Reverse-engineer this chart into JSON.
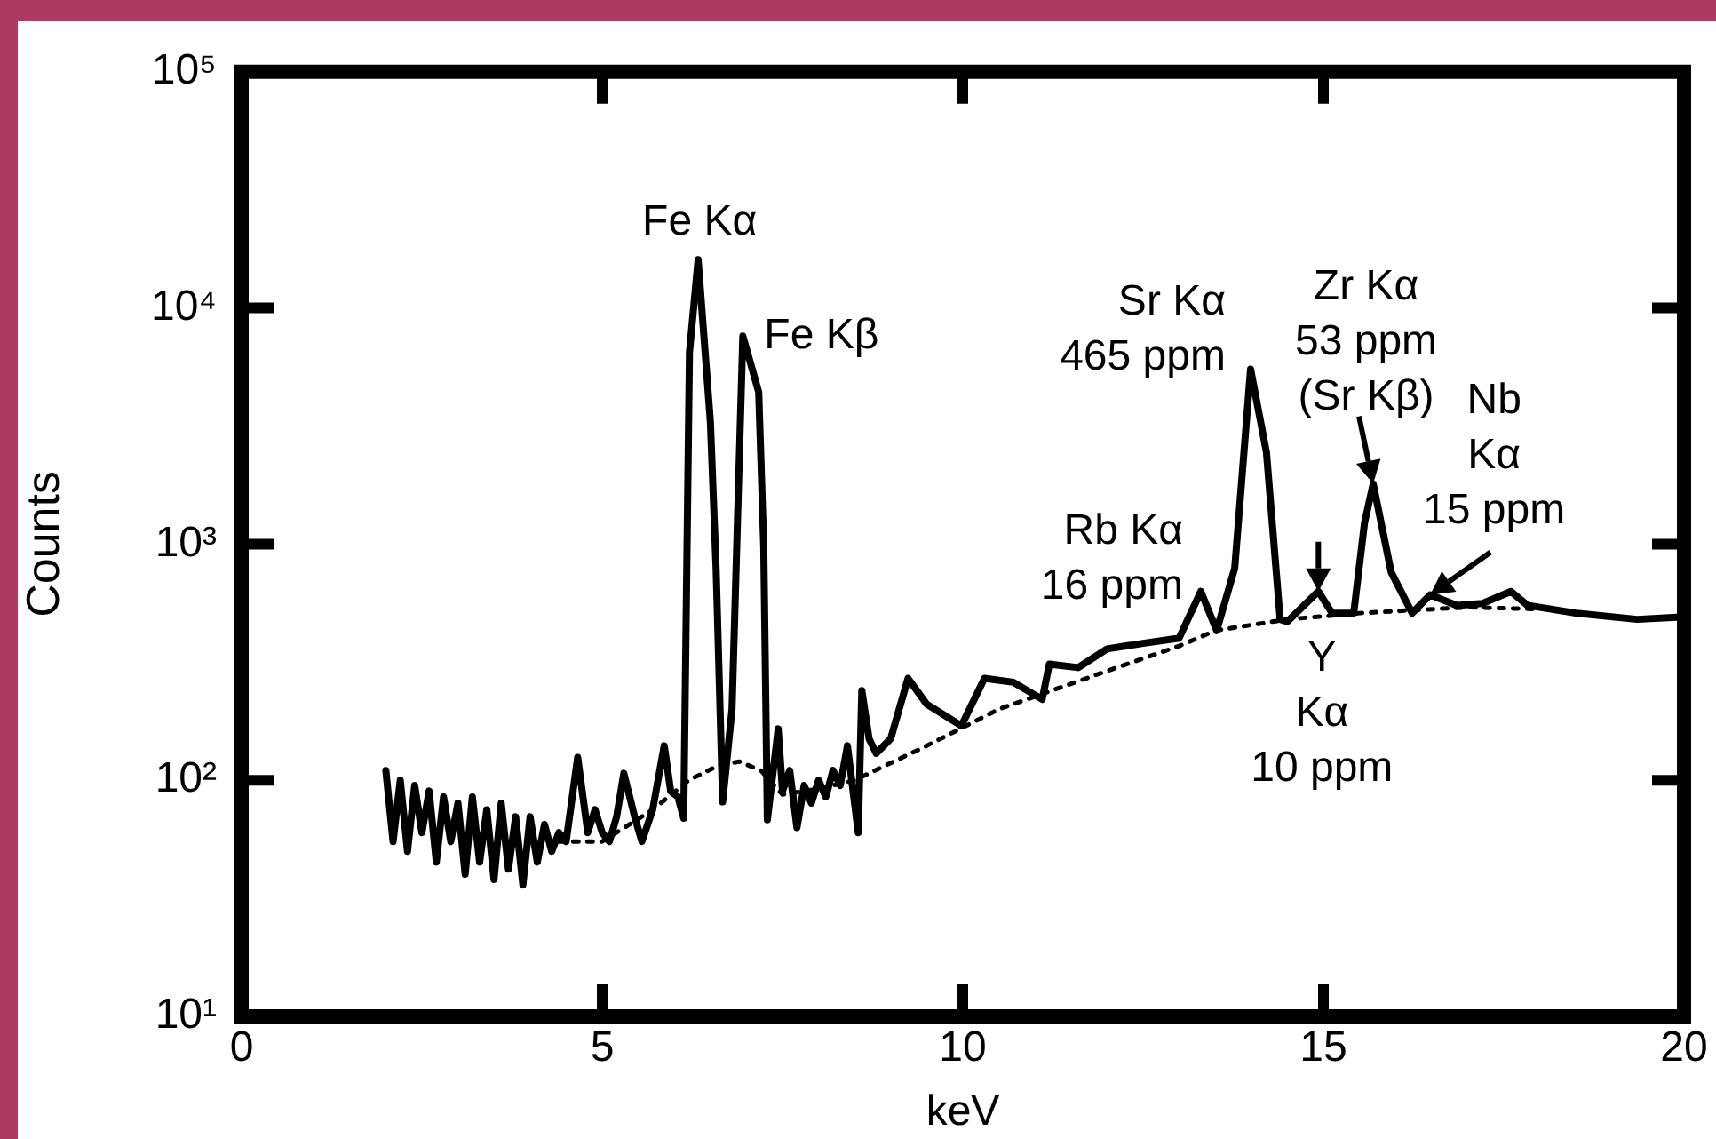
{
  "chart_data": {
    "type": "line",
    "xlabel": "keV",
    "ylabel": "Counts",
    "xlim": [
      0,
      20
    ],
    "xticks": [
      0,
      5,
      10,
      15,
      20
    ],
    "ylim": [
      10,
      100000
    ],
    "yticks": [
      {
        "value": 10,
        "label": "10¹"
      },
      {
        "value": 100,
        "label": "10²"
      },
      {
        "value": 1000,
        "label": "10³"
      },
      {
        "value": 10000,
        "label": "10⁴"
      },
      {
        "value": 100000,
        "label": "10⁵"
      }
    ],
    "log": "y",
    "grid": false,
    "legend": false,
    "marker": "none",
    "series": [
      {
        "color": "#000000",
        "line_style": "solid",
        "x": [
          2.0,
          2.1,
          2.2,
          2.3,
          2.4,
          2.5,
          2.6,
          2.7,
          2.8,
          2.9,
          3.0,
          3.1,
          3.2,
          3.3,
          3.4,
          3.5,
          3.6,
          3.7,
          3.8,
          3.9,
          4.0,
          4.1,
          4.2,
          4.3,
          4.4,
          4.5,
          4.66,
          4.8,
          4.9,
          5.0,
          5.1,
          5.2,
          5.3,
          5.45,
          5.55,
          5.7,
          5.86,
          5.95,
          6.05,
          6.13,
          6.21,
          6.33,
          6.5,
          6.58,
          6.67,
          6.8,
          6.95,
          7.17,
          7.24,
          7.29,
          7.44,
          7.5,
          7.6,
          7.7,
          7.8,
          7.9,
          8.0,
          8.1,
          8.2,
          8.3,
          8.4,
          8.55,
          8.6,
          8.7,
          8.8,
          9.0,
          9.24,
          9.5,
          9.98,
          10.3,
          10.7,
          11.1,
          11.2,
          11.6,
          12.0,
          12.5,
          13.0,
          13.3,
          13.52,
          13.77,
          13.99,
          14.21,
          14.4,
          14.5,
          14.93,
          15.12,
          15.42,
          15.57,
          15.69,
          15.94,
          16.23,
          16.48,
          16.85,
          17.2,
          17.6,
          17.83,
          18.5,
          19.35,
          19.9
        ],
        "values": [
          110,
          55,
          100,
          50,
          95,
          60,
          90,
          45,
          85,
          55,
          80,
          40,
          85,
          45,
          75,
          38,
          80,
          42,
          70,
          36,
          70,
          45,
          65,
          50,
          60,
          55,
          125,
          60,
          75,
          60,
          55,
          70,
          107,
          70,
          55,
          75,
          140,
          90,
          85,
          69,
          6500,
          16000,
          3300,
          780,
          81,
          200,
          7600,
          4400,
          970,
          68,
          165,
          90,
          110,
          63,
          95,
          80,
          100,
          85,
          110,
          95,
          140,
          60,
          240,
          150,
          130,
          150,
          270,
          210,
          170,
          270,
          260,
          220,
          310,
          300,
          360,
          380,
          400,
          630,
          430,
          790,
          5500,
          2450,
          480,
          470,
          630,
          510,
          510,
          1230,
          1800,
          760,
          510,
          610,
          550,
          560,
          630,
          550,
          510,
          480,
          490
        ]
      },
      {
        "color": "#000000",
        "line_style": "dotted",
        "x": [
          4.4,
          5.0,
          5.7,
          6.2,
          6.6,
          6.9,
          7.2,
          7.5,
          8.0,
          8.5,
          9.5,
          10.5,
          12.0,
          13.0,
          13.5,
          14.5,
          15.5,
          17.0,
          18.0
        ],
        "values": [
          55,
          55,
          75,
          100,
          115,
          120,
          110,
          87,
          92,
          100,
          140,
          200,
          290,
          370,
          430,
          480,
          510,
          540,
          530
        ]
      }
    ],
    "annotations": [
      {
        "text": "Fe Kα",
        "x": 6.35,
        "y": 16000
      },
      {
        "text": "Fe Kβ",
        "x": 6.95,
        "y": 7600
      },
      {
        "text": "Sr Kα\n465 ppm",
        "x": 13.99,
        "y": 5500
      },
      {
        "text": "Zr Kα\n53 ppm\n(Sr Kβ)",
        "x": 15.69,
        "y": 1800
      },
      {
        "text": "Nb\nKα\n15 ppm",
        "x": 16.48,
        "y": 610
      },
      {
        "text": "Rb Kα\n16 ppm",
        "x": 13.3,
        "y": 630
      },
      {
        "text": "Y\nKα\n10 ppm",
        "x": 14.93,
        "y": 630
      }
    ]
  }
}
